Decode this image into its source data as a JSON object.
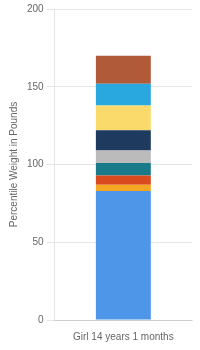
{
  "chart_data": {
    "type": "bar",
    "stacked": true,
    "categories": [
      "Girl 14 years 1 months"
    ],
    "series": [
      {
        "color": "#4D96E8",
        "values": [
          83
        ]
      },
      {
        "color": "#F5A623",
        "values": [
          4
        ]
      },
      {
        "color": "#D94A1E",
        "values": [
          6
        ]
      },
      {
        "color": "#1A7A8A",
        "values": [
          8
        ]
      },
      {
        "color": "#BBBBBB",
        "values": [
          8
        ]
      },
      {
        "color": "#1E3A5F",
        "values": [
          13
        ]
      },
      {
        "color": "#FADA6A",
        "values": [
          16
        ]
      },
      {
        "color": "#29A8E0",
        "values": [
          14
        ]
      },
      {
        "color": "#B05A3A",
        "values": [
          18
        ]
      }
    ],
    "ylabel": "Percentile Weight in Pounds",
    "ylim": [
      0,
      200
    ],
    "yticks": [
      0,
      50,
      100,
      150,
      200
    ],
    "grid": true
  }
}
